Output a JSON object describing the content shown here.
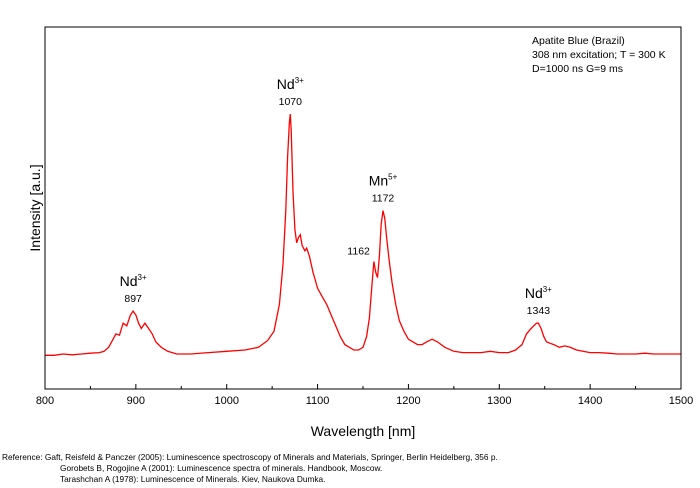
{
  "chart_data": {
    "type": "line",
    "title": "",
    "xlabel": "Wavelength [nm]",
    "ylabel": "Intensity [a.u.]",
    "xlim": [
      800,
      1500
    ],
    "ylim": [
      0,
      100
    ],
    "x_ticks": [
      800,
      900,
      1000,
      1100,
      1200,
      1300,
      1400,
      1500
    ],
    "show_y_ticks": false,
    "grid": false,
    "legend": "none",
    "line_color": "#ff0000",
    "info_box": {
      "position": "top-right",
      "lines": [
        "Apatite Blue (Brazil)",
        "308 nm excitation; T = 300 K",
        "D=1000 ns  G=9 ms"
      ]
    },
    "annotations": [
      {
        "ion": "Nd",
        "charge": "3+",
        "wavelength": "897",
        "x": 897,
        "y": 17.5
      },
      {
        "ion": "Nd",
        "charge": "3+",
        "wavelength": "1070",
        "x": 1070,
        "y": 91
      },
      {
        "ion": "Mn",
        "charge": "5+",
        "wavelength": "1172",
        "x": 1172,
        "y": 55
      },
      {
        "ion": "",
        "charge": "",
        "wavelength": "1162",
        "x": 1162,
        "y": 36
      },
      {
        "ion": "Nd",
        "charge": "3+",
        "wavelength": "1343",
        "x": 1343,
        "y": 13
      }
    ],
    "series": [
      {
        "name": "",
        "x": [
          800,
          810,
          820,
          830,
          840,
          850,
          860,
          865,
          870,
          875,
          878,
          882,
          886,
          890,
          894,
          897,
          900,
          903,
          906,
          910,
          914,
          918,
          922,
          928,
          935,
          945,
          960,
          980,
          1000,
          1020,
          1035,
          1045,
          1052,
          1058,
          1062,
          1065,
          1067,
          1069,
          1070,
          1071,
          1073,
          1075,
          1077,
          1079,
          1081,
          1083,
          1086,
          1088,
          1091,
          1095,
          1100,
          1105,
          1110,
          1115,
          1120,
          1125,
          1130,
          1135,
          1140,
          1145,
          1150,
          1154,
          1157,
          1160,
          1162,
          1164,
          1166,
          1168,
          1170,
          1172,
          1174,
          1176,
          1179,
          1182,
          1186,
          1190,
          1195,
          1200,
          1205,
          1210,
          1215,
          1220,
          1226,
          1232,
          1240,
          1250,
          1260,
          1270,
          1280,
          1290,
          1300,
          1310,
          1318,
          1325,
          1330,
          1335,
          1338,
          1341,
          1343,
          1346,
          1349,
          1352,
          1356,
          1360,
          1366,
          1372,
          1378,
          1385,
          1392,
          1400,
          1410,
          1420,
          1430,
          1440,
          1450,
          1460,
          1470,
          1480,
          1490,
          1500
        ],
        "y": [
          1,
          1,
          1.5,
          1.2,
          1.5,
          1.8,
          2,
          2.5,
          4,
          7,
          9,
          8.5,
          13,
          12,
          16,
          17.5,
          16,
          13,
          11,
          13,
          11,
          9,
          6,
          4,
          2.5,
          1.5,
          1.5,
          2,
          2.5,
          3,
          4,
          6.5,
          10,
          20,
          35,
          55,
          75,
          88,
          91,
          85,
          62,
          48,
          43,
          45,
          46,
          42,
          40,
          41,
          38,
          32,
          26,
          23,
          20,
          16,
          12,
          8,
          5,
          4,
          3,
          3,
          4,
          8,
          15,
          28,
          36,
          32,
          30,
          38,
          50,
          55,
          52,
          45,
          36,
          28,
          20,
          14,
          10,
          7,
          6,
          5,
          5,
          6,
          7,
          6,
          4,
          2.5,
          2,
          2,
          2,
          2.5,
          2,
          2,
          3,
          5,
          9,
          11,
          12,
          13,
          13,
          11,
          8,
          6,
          5.5,
          5,
          4,
          4.5,
          4,
          3,
          2.5,
          2,
          2,
          1.8,
          1.5,
          1.5,
          1.5,
          1.8,
          1.5,
          1.5,
          1.5,
          1.5
        ]
      }
    ]
  },
  "references": [
    "Reference: Gaft, Reisfeld & Panczer (2005): Luminescence spectroscopy of Minerals and Materials, Springer, Berlin Heidelberg, 356 p.",
    "Gorobets B, Rogojine A (2001): Luminescence spectra of minerals. Handbook, Moscow.",
    "Tarashchan A (1978): Luminescence of Minerals. Kiev, Naukova Dumka."
  ]
}
